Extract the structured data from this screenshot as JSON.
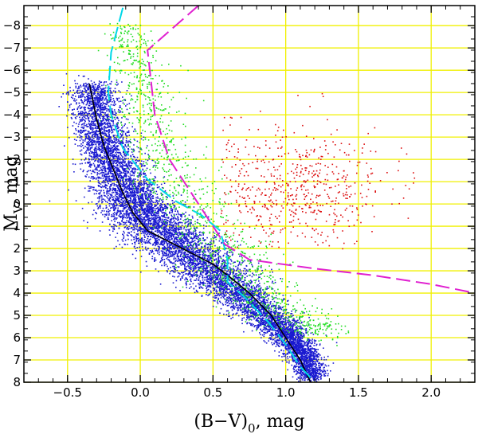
{
  "chart_data": {
    "type": "scatter",
    "title": "",
    "xlabel": "(B−V)",
    "xlabel_subscript": "0",
    "xlabel_unit": ", mag",
    "ylabel": "M",
    "ylabel_subscript": "V",
    "ylabel_unit": ", mag",
    "xlim": [
      -0.8,
      2.3
    ],
    "ylim": [
      8.0,
      -8.9
    ],
    "x_ticks": [
      -0.5,
      0.0,
      0.5,
      1.0,
      1.5,
      2.0
    ],
    "x_tick_labels": [
      "−0.5",
      "0.0",
      "0.5",
      "1.0",
      "1.5",
      "2.0"
    ],
    "y_ticks": [
      -8,
      -7,
      -6,
      -5,
      -4,
      -3,
      -2,
      -1,
      0,
      1,
      2,
      3,
      4,
      5,
      6,
      7,
      8
    ],
    "y_tick_labels": [
      "−8",
      "−7",
      "−6",
      "−5",
      "−4",
      "−3",
      "−2",
      "−1",
      "0",
      "1",
      "2",
      "3",
      "4",
      "5",
      "6",
      "7",
      "8"
    ],
    "grid": true,
    "colors": {
      "grid": "#f0f000",
      "frame": "#000000",
      "main_sequence_stars": "#1a1ad0",
      "transition_stars": "#22dd22",
      "giant_stars": "#dd1111",
      "main_sequence_line": "#000000",
      "boundary_cyan": "#00d8e8",
      "boundary_magenta": "#e020d0"
    },
    "series": [
      {
        "name": "main-sequence-stars",
        "kind": "scatter",
        "color_key": "main_sequence_stars",
        "description_region": "dense band along main sequence",
        "count": 9000,
        "ridge": [
          [
            -0.33,
            -5.4
          ],
          [
            -0.28,
            -3.5
          ],
          [
            -0.2,
            -2.0
          ],
          [
            -0.1,
            -0.6
          ],
          [
            0.0,
            0.4
          ],
          [
            0.15,
            1.3
          ],
          [
            0.35,
            2.3
          ],
          [
            0.55,
            3.3
          ],
          [
            0.75,
            4.4
          ],
          [
            0.95,
            5.5
          ],
          [
            1.1,
            6.5
          ],
          [
            1.18,
            7.8
          ]
        ],
        "spread": [
          0.08,
          0.09,
          0.1,
          0.11,
          0.13,
          0.14,
          0.13,
          0.12,
          0.1,
          0.08,
          0.06,
          0.05
        ]
      },
      {
        "name": "transition-stars",
        "kind": "scatter",
        "color_key": "transition_stars",
        "count": 1300,
        "ridge": [
          [
            -0.1,
            -8.0
          ],
          [
            -0.02,
            -6.0
          ],
          [
            0.05,
            -4.0
          ],
          [
            0.15,
            -2.0
          ],
          [
            0.3,
            -0.2
          ],
          [
            0.5,
            1.5
          ],
          [
            0.65,
            2.8
          ],
          [
            0.8,
            4.0
          ],
          [
            1.0,
            5.0
          ],
          [
            1.3,
            5.8
          ]
        ],
        "spread": [
          0.08,
          0.1,
          0.12,
          0.14,
          0.15,
          0.16,
          0.16,
          0.14,
          0.12,
          0.1
        ]
      },
      {
        "name": "giant-stars",
        "kind": "scatter",
        "color_key": "giant_stars",
        "count": 650,
        "center": [
          1.05,
          -0.6
        ],
        "sigma": [
          0.32,
          1.4
        ],
        "x_range": [
          0.55,
          2.0
        ],
        "y_range": [
          -6.3,
          2.0
        ]
      },
      {
        "name": "main-sequence-line",
        "kind": "line",
        "style": "solid",
        "color_key": "main_sequence_line",
        "points": [
          [
            -0.35,
            -5.4
          ],
          [
            -0.3,
            -3.8
          ],
          [
            -0.25,
            -2.6
          ],
          [
            -0.2,
            -1.8
          ],
          [
            -0.12,
            -0.5
          ],
          [
            -0.05,
            0.4
          ],
          [
            0.05,
            1.2
          ],
          [
            0.2,
            1.7
          ],
          [
            0.35,
            2.2
          ],
          [
            0.5,
            2.7
          ],
          [
            0.62,
            3.3
          ],
          [
            0.75,
            4.0
          ],
          [
            0.9,
            5.0
          ],
          [
            1.0,
            6.0
          ],
          [
            1.1,
            7.0
          ],
          [
            1.17,
            8.0
          ]
        ]
      },
      {
        "name": "boundary-cyan",
        "kind": "line",
        "style": "long-dash",
        "color_key": "boundary_cyan",
        "points": [
          [
            -0.12,
            -8.8
          ],
          [
            -0.2,
            -6.8
          ],
          [
            -0.22,
            -5.0
          ],
          [
            -0.2,
            -4.0
          ],
          [
            -0.12,
            -2.5
          ],
          [
            0.05,
            -1.1
          ],
          [
            0.25,
            -0.1
          ],
          [
            0.42,
            0.5
          ],
          [
            0.55,
            1.2
          ],
          [
            0.6,
            2.5
          ],
          [
            0.6,
            3.5
          ],
          [
            0.72,
            4.2
          ],
          [
            0.88,
            5.3
          ],
          [
            1.0,
            6.3
          ],
          [
            1.1,
            7.3
          ],
          [
            1.2,
            8.0
          ]
        ]
      },
      {
        "name": "boundary-magenta",
        "kind": "line",
        "style": "long-dash",
        "color_key": "boundary_magenta",
        "points": [
          [
            0.4,
            -8.9
          ],
          [
            0.05,
            -6.9
          ],
          [
            0.1,
            -4.0
          ],
          [
            0.2,
            -2.0
          ],
          [
            0.35,
            -0.5
          ],
          [
            0.5,
            1.0
          ],
          [
            0.58,
            1.8
          ],
          [
            0.75,
            2.5
          ],
          [
            1.2,
            2.9
          ],
          [
            1.6,
            3.2
          ],
          [
            2.0,
            3.6
          ],
          [
            2.3,
            4.0
          ]
        ]
      }
    ]
  }
}
